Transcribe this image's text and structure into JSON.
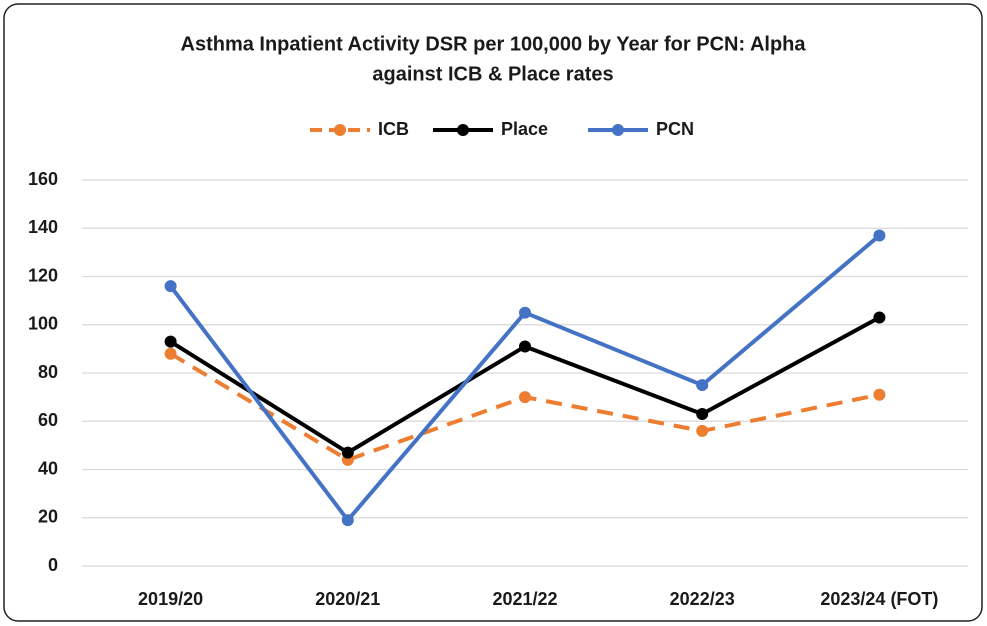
{
  "chart_data": {
    "type": "line",
    "title": [
      "Asthma  Inpatient Activity DSR per 100,000 by Year for PCN: Alpha",
      "against ICB & Place rates"
    ],
    "categories": [
      "2019/20",
      "2020/21",
      "2021/22",
      "2022/23",
      "2023/24 (FOT)"
    ],
    "series": [
      {
        "name": "ICB",
        "color": "#ed7d31",
        "dashed": true,
        "values": [
          88,
          44,
          70,
          56,
          71
        ]
      },
      {
        "name": "Place",
        "color": "#000000",
        "values": [
          93,
          47,
          91,
          63,
          103
        ]
      },
      {
        "name": "PCN",
        "color": "#4472c4",
        "values": [
          116,
          19,
          105,
          75,
          137
        ]
      }
    ],
    "ylim": [
      0,
      160
    ],
    "yticks": [
      0,
      20,
      40,
      60,
      80,
      100,
      120,
      140,
      160
    ],
    "grid": true,
    "legend": "top"
  }
}
